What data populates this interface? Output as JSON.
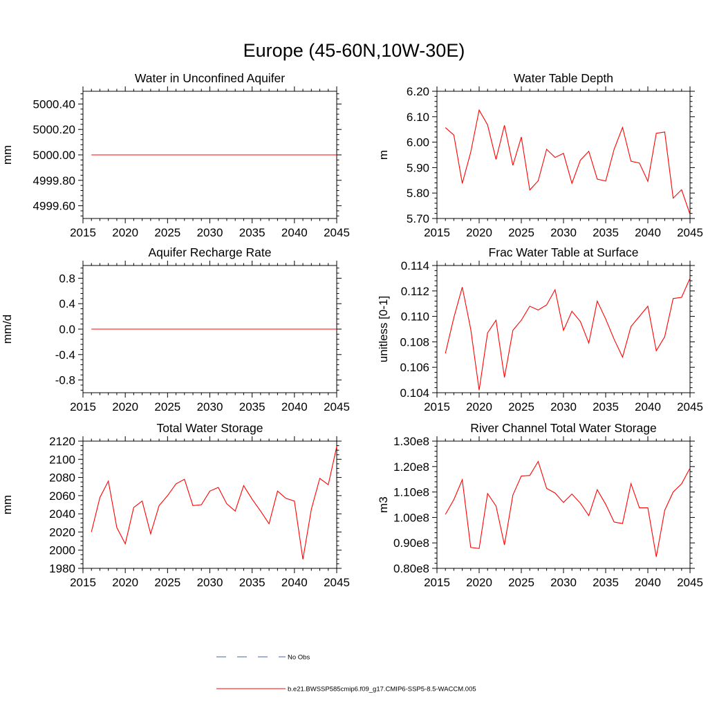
{
  "figure": {
    "title": "Europe (45-60N,10W-30E)",
    "line_color": "#ff0000",
    "obs_color": "#4a5fa8",
    "legend": {
      "entries": [
        {
          "label": "No Obs",
          "style": "dashed",
          "color": "#4a5fa8"
        },
        {
          "label": "b.e21.BWSSP585cmip6.f09_g17.CMIP6-SSP5-8.5-WACCM.005",
          "style": "solid",
          "color": "#ff0000"
        }
      ]
    }
  },
  "chart_data": [
    {
      "type": "line",
      "title": "Water in Unconfined Aquifer",
      "ylabel": "mm",
      "xlim": [
        2015,
        2045
      ],
      "ylim": [
        4999.5,
        5000.5
      ],
      "xticks": [
        2015,
        2020,
        2025,
        2030,
        2035,
        2040,
        2045
      ],
      "yticks": [
        4999.6,
        4999.8,
        5000.0,
        5000.2,
        5000.4
      ],
      "yticklabels": [
        "4999.60",
        "4999.80",
        "5000.00",
        "5000.20",
        "5000.40"
      ],
      "ysubticks": 4,
      "x": [
        2016,
        2017,
        2018,
        2019,
        2020,
        2021,
        2022,
        2023,
        2024,
        2025,
        2026,
        2027,
        2028,
        2029,
        2030,
        2031,
        2032,
        2033,
        2034,
        2035,
        2036,
        2037,
        2038,
        2039,
        2040,
        2041,
        2042,
        2043,
        2044,
        2045
      ],
      "series": [
        {
          "values": [
            5000,
            5000,
            5000,
            5000,
            5000,
            5000,
            5000,
            5000,
            5000,
            5000,
            5000,
            5000,
            5000,
            5000,
            5000,
            5000,
            5000,
            5000,
            5000,
            5000,
            5000,
            5000,
            5000,
            5000,
            5000,
            5000,
            5000,
            5000,
            5000,
            5000
          ]
        }
      ]
    },
    {
      "type": "line",
      "title": "Water Table Depth",
      "ylabel": "m",
      "xlim": [
        2015,
        2045
      ],
      "ylim": [
        5.7,
        6.2
      ],
      "xticks": [
        2015,
        2020,
        2025,
        2030,
        2035,
        2040,
        2045
      ],
      "yticks": [
        5.7,
        5.8,
        5.9,
        6.0,
        6.1,
        6.2
      ],
      "yticklabels": [
        "5.70",
        "5.80",
        "5.90",
        "6.00",
        "6.10",
        "6.20"
      ],
      "ysubticks": 4,
      "x": [
        2016,
        2017,
        2018,
        2019,
        2020,
        2021,
        2022,
        2023,
        2024,
        2025,
        2026,
        2027,
        2028,
        2029,
        2030,
        2031,
        2032,
        2033,
        2034,
        2035,
        2036,
        2037,
        2038,
        2039,
        2040,
        2041,
        2042,
        2043,
        2044,
        2045
      ],
      "series": [
        {
          "values": [
            6.057,
            6.028,
            5.838,
            5.96,
            6.126,
            6.068,
            5.932,
            6.066,
            5.909,
            6.02,
            5.812,
            5.848,
            5.972,
            5.94,
            5.956,
            5.838,
            5.929,
            5.964,
            5.855,
            5.847,
            5.972,
            6.058,
            5.925,
            5.918,
            5.846,
            6.035,
            6.04,
            5.78,
            5.813,
            5.716
          ]
        }
      ]
    },
    {
      "type": "line",
      "title": "Aquifer Recharge Rate",
      "ylabel": "mm/d",
      "xlim": [
        2015,
        2045
      ],
      "ylim": [
        -1.0,
        1.0
      ],
      "xticks": [
        2015,
        2020,
        2025,
        2030,
        2035,
        2040,
        2045
      ],
      "yticks": [
        -0.8,
        -0.4,
        0.0,
        0.4,
        0.8
      ],
      "yticklabels": [
        "-0.8",
        "-0.4",
        "0.0",
        "0.4",
        "0.8"
      ],
      "ysubticks": 4,
      "x": [
        2016,
        2017,
        2018,
        2019,
        2020,
        2021,
        2022,
        2023,
        2024,
        2025,
        2026,
        2027,
        2028,
        2029,
        2030,
        2031,
        2032,
        2033,
        2034,
        2035,
        2036,
        2037,
        2038,
        2039,
        2040,
        2041,
        2042,
        2043,
        2044,
        2045
      ],
      "series": [
        {
          "values": [
            0,
            0,
            0,
            0,
            0,
            0,
            0,
            0,
            0,
            0,
            0,
            0,
            0,
            0,
            0,
            0,
            0,
            0,
            0,
            0,
            0,
            0,
            0,
            0,
            0,
            0,
            0,
            0,
            0,
            0
          ]
        }
      ]
    },
    {
      "type": "line",
      "title": "Frac Water Table at Surface",
      "ylabel": "unitless [0-1]",
      "xlim": [
        2015,
        2045
      ],
      "ylim": [
        0.104,
        0.114
      ],
      "xticks": [
        2015,
        2020,
        2025,
        2030,
        2035,
        2040,
        2045
      ],
      "yticks": [
        0.104,
        0.106,
        0.108,
        0.11,
        0.112,
        0.114
      ],
      "yticklabels": [
        "0.104",
        "0.106",
        "0.108",
        "0.110",
        "0.112",
        "0.114"
      ],
      "ysubticks": 4,
      "x": [
        2016,
        2017,
        2018,
        2019,
        2020,
        2021,
        2022,
        2023,
        2024,
        2025,
        2026,
        2027,
        2028,
        2029,
        2030,
        2031,
        2032,
        2033,
        2034,
        2035,
        2036,
        2037,
        2038,
        2039,
        2040,
        2041,
        2042,
        2043,
        2044,
        2045
      ],
      "series": [
        {
          "values": [
            0.1071,
            0.1099,
            0.1123,
            0.109,
            0.1042,
            0.1087,
            0.1097,
            0.1052,
            0.1089,
            0.1097,
            0.1108,
            0.1105,
            0.1109,
            0.1121,
            0.1089,
            0.1104,
            0.1096,
            0.1079,
            0.1112,
            0.1098,
            0.1082,
            0.1068,
            0.1092,
            0.11,
            0.1108,
            0.1073,
            0.1084,
            0.1114,
            0.1115,
            0.113
          ]
        }
      ]
    },
    {
      "type": "line",
      "title": "Total Water Storage",
      "ylabel": "mm",
      "xlim": [
        2015,
        2045
      ],
      "ylim": [
        1980,
        2120
      ],
      "xticks": [
        2015,
        2020,
        2025,
        2030,
        2035,
        2040,
        2045
      ],
      "yticks": [
        1980,
        2000,
        2020,
        2040,
        2060,
        2080,
        2100,
        2120
      ],
      "yticklabels": [
        "1980",
        "2000",
        "2020",
        "2040",
        "2060",
        "2080",
        "2100",
        "2120"
      ],
      "ysubticks": 3,
      "x": [
        2016,
        2017,
        2018,
        2019,
        2020,
        2021,
        2022,
        2023,
        2024,
        2025,
        2026,
        2027,
        2028,
        2029,
        2030,
        2031,
        2032,
        2033,
        2034,
        2035,
        2036,
        2037,
        2038,
        2039,
        2040,
        2041,
        2042,
        2043,
        2044,
        2045
      ],
      "series": [
        {
          "values": [
            2020,
            2058,
            2076,
            2025,
            2007,
            2047,
            2054,
            2018,
            2049,
            2060,
            2073,
            2078,
            2049,
            2050,
            2065,
            2069,
            2051,
            2043,
            2071,
            2056,
            2043,
            2029,
            2065,
            2057,
            2054,
            1990,
            2045,
            2079,
            2072,
            2114
          ]
        }
      ]
    },
    {
      "type": "line",
      "title": "River Channel Total Water Storage",
      "ylabel": "m3",
      "xlim": [
        2015,
        2045
      ],
      "ylim": [
        0.8,
        1.3
      ],
      "yunit_scale": "e8",
      "xticks": [
        2015,
        2020,
        2025,
        2030,
        2035,
        2040,
        2045
      ],
      "yticks": [
        0.8,
        0.9,
        1.0,
        1.1,
        1.2,
        1.3
      ],
      "yticklabels": [
        "0.80e8",
        "0.90e8",
        "1.00e8",
        "1.10e8",
        "1.20e8",
        "1.30e8"
      ],
      "ysubticks": 4,
      "x": [
        2016,
        2017,
        2018,
        2019,
        2020,
        2021,
        2022,
        2023,
        2024,
        2025,
        2026,
        2027,
        2028,
        2029,
        2030,
        2031,
        2032,
        2033,
        2034,
        2035,
        2036,
        2037,
        2038,
        2039,
        2040,
        2041,
        2042,
        2043,
        2044,
        2045
      ],
      "series": [
        {
          "values": [
            1.012,
            1.07,
            1.148,
            0.882,
            0.878,
            1.094,
            1.045,
            0.892,
            1.088,
            1.163,
            1.165,
            1.22,
            1.114,
            1.096,
            1.059,
            1.092,
            1.056,
            1.007,
            1.109,
            1.052,
            0.982,
            0.976,
            1.133,
            1.038,
            1.038,
            0.845,
            1.028,
            1.1,
            1.132,
            1.194
          ]
        }
      ]
    }
  ]
}
